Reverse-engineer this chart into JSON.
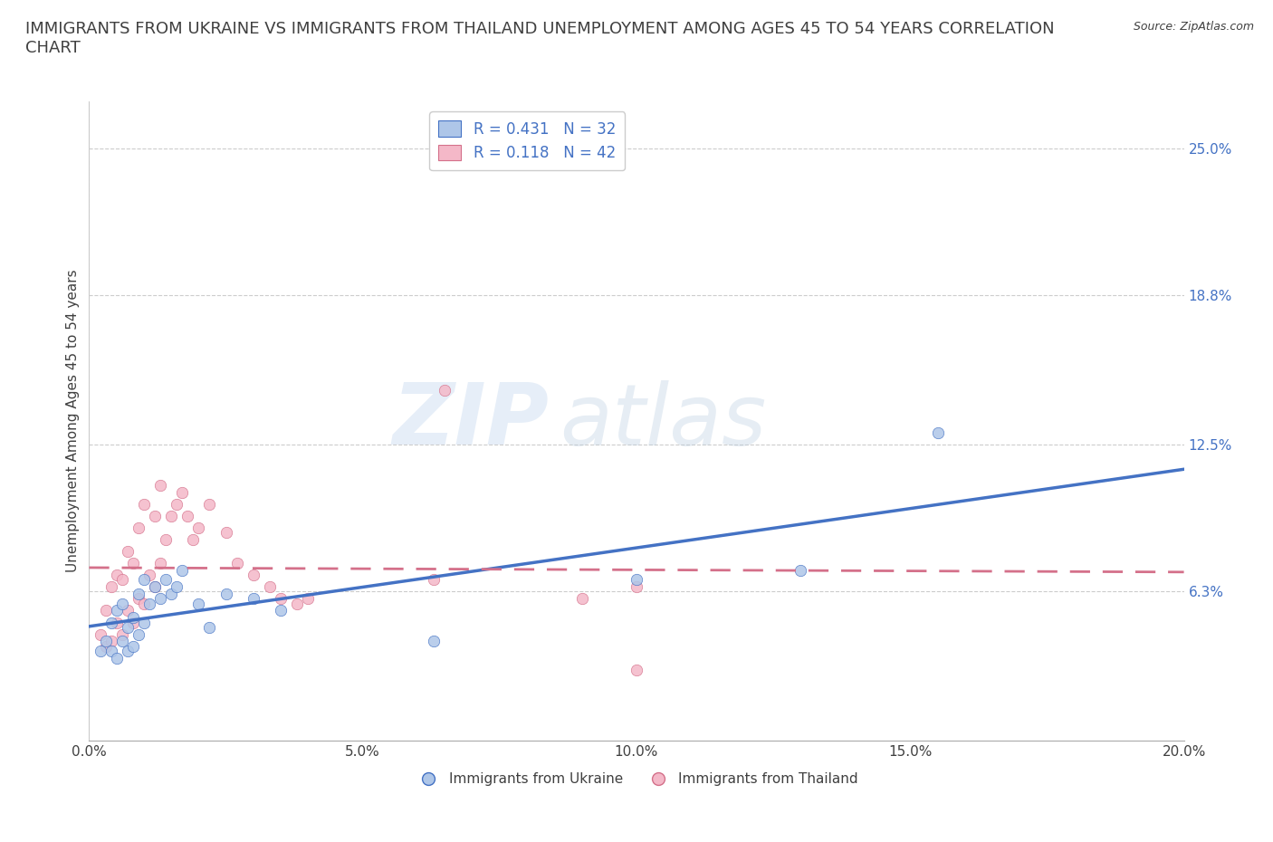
{
  "title": "IMMIGRANTS FROM UKRAINE VS IMMIGRANTS FROM THAILAND UNEMPLOYMENT AMONG AGES 45 TO 54 YEARS CORRELATION\nCHART",
  "source": "Source: ZipAtlas.com",
  "ylabel": "Unemployment Among Ages 45 to 54 years",
  "xlim": [
    0.0,
    0.2
  ],
  "ylim": [
    0.0,
    0.27
  ],
  "yticks": [
    0.0,
    0.063,
    0.125,
    0.188,
    0.25
  ],
  "ytick_labels": [
    "",
    "6.3%",
    "12.5%",
    "18.8%",
    "25.0%"
  ],
  "xticks": [
    0.0,
    0.025,
    0.05,
    0.075,
    0.1,
    0.125,
    0.15,
    0.175,
    0.2
  ],
  "xtick_labels": [
    "0.0%",
    "",
    "5.0%",
    "",
    "10.0%",
    "",
    "15.0%",
    "",
    "20.0%"
  ],
  "ukraine_R": 0.431,
  "ukraine_N": 32,
  "thailand_R": 0.118,
  "thailand_N": 42,
  "ukraine_color": "#aec6e8",
  "ukraine_line_color": "#4472c4",
  "thailand_color": "#f4b8c8",
  "thailand_line_color": "#d4708a",
  "watermark_zip": "ZIP",
  "watermark_atlas": "atlas",
  "ukraine_scatter_x": [
    0.002,
    0.003,
    0.004,
    0.004,
    0.005,
    0.005,
    0.006,
    0.006,
    0.007,
    0.007,
    0.008,
    0.008,
    0.009,
    0.009,
    0.01,
    0.01,
    0.011,
    0.012,
    0.013,
    0.014,
    0.015,
    0.016,
    0.017,
    0.02,
    0.022,
    0.025,
    0.03,
    0.035,
    0.063,
    0.1,
    0.13,
    0.155
  ],
  "ukraine_scatter_y": [
    0.038,
    0.042,
    0.038,
    0.05,
    0.035,
    0.055,
    0.042,
    0.058,
    0.038,
    0.048,
    0.04,
    0.052,
    0.045,
    0.062,
    0.05,
    0.068,
    0.058,
    0.065,
    0.06,
    0.068,
    0.062,
    0.065,
    0.072,
    0.058,
    0.048,
    0.062,
    0.06,
    0.055,
    0.042,
    0.068,
    0.072,
    0.13
  ],
  "thailand_scatter_x": [
    0.002,
    0.003,
    0.003,
    0.004,
    0.004,
    0.005,
    0.005,
    0.006,
    0.006,
    0.007,
    0.007,
    0.008,
    0.008,
    0.009,
    0.009,
    0.01,
    0.01,
    0.011,
    0.012,
    0.012,
    0.013,
    0.013,
    0.014,
    0.015,
    0.016,
    0.017,
    0.018,
    0.019,
    0.02,
    0.022,
    0.025,
    0.027,
    0.03,
    0.033,
    0.035,
    0.038,
    0.04,
    0.063,
    0.09,
    0.1,
    0.1,
    0.065
  ],
  "thailand_scatter_y": [
    0.045,
    0.04,
    0.055,
    0.042,
    0.065,
    0.05,
    0.07,
    0.045,
    0.068,
    0.055,
    0.08,
    0.05,
    0.075,
    0.06,
    0.09,
    0.058,
    0.1,
    0.07,
    0.065,
    0.095,
    0.075,
    0.108,
    0.085,
    0.095,
    0.1,
    0.105,
    0.095,
    0.085,
    0.09,
    0.1,
    0.088,
    0.075,
    0.07,
    0.065,
    0.06,
    0.058,
    0.06,
    0.068,
    0.06,
    0.065,
    0.03,
    0.148
  ],
  "background_color": "#ffffff",
  "grid_color": "#cccccc",
  "text_color": "#404040",
  "title_fontsize": 13,
  "label_fontsize": 11,
  "tick_fontsize": 11,
  "legend_fontsize": 12
}
